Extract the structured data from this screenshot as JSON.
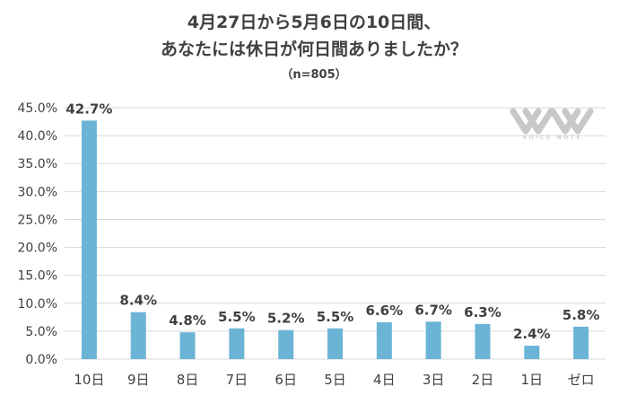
{
  "chart_data": {
    "type": "bar",
    "title": [
      "4月27日から5月6日の10日間、",
      "あなたには休日が何日間ありましたか？"
    ],
    "subtitle": "（n=805）",
    "xlabel": "",
    "ylabel": "",
    "categories": [
      "10日",
      "9日",
      "8日",
      "7日",
      "6日",
      "5日",
      "4日",
      "3日",
      "2日",
      "1日",
      "ゼロ"
    ],
    "values": [
      42.7,
      8.4,
      4.8,
      5.5,
      5.2,
      5.5,
      6.6,
      6.7,
      6.3,
      2.4,
      5.8
    ],
    "data_labels": [
      "42.7%",
      "8.4%",
      "4.8%",
      "5.5%",
      "5.2%",
      "5.5%",
      "6.6%",
      "6.7%",
      "6.3%",
      "2.4%",
      "5.8%"
    ],
    "ylim": [
      0,
      45
    ],
    "yticks": [
      0,
      5,
      10,
      15,
      20,
      25,
      30,
      35,
      40,
      45
    ],
    "ytick_labels": [
      "0.0%",
      "5.0%",
      "10.0%",
      "15.0%",
      "20.0%",
      "25.0%",
      "30.0%",
      "35.0%",
      "40.0%",
      "45.0%"
    ],
    "grid": true,
    "legend": "none",
    "bar_color": "#6cb4d6",
    "grid_color": "#d9d9d9"
  },
  "watermark": {
    "text": "VOICE NOTE",
    "icon": "voice-note-logo-icon"
  }
}
